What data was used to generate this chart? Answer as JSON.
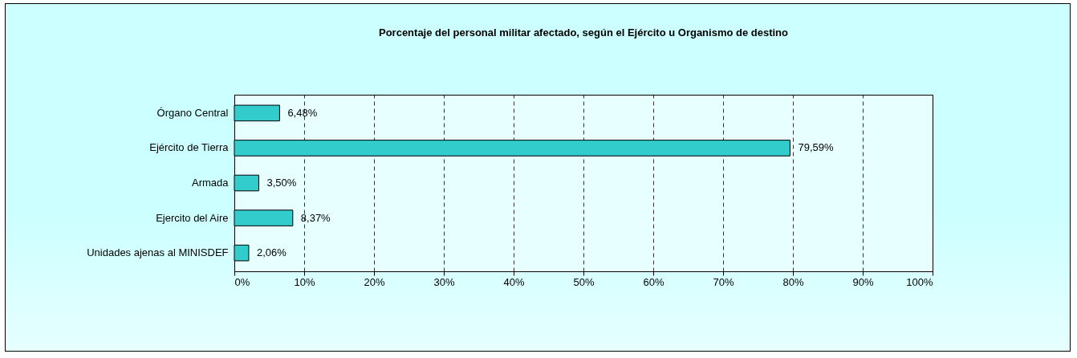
{
  "chart_data": {
    "type": "bar",
    "orientation": "horizontal",
    "title": "Porcentaje del personal militar afectado, según el Ejército u Organismo de destino",
    "categories": [
      "Órgano Central",
      "Ejército de Tierra",
      "Armada",
      "Ejercito del Aire",
      "Unidades ajenas al MINISDEF"
    ],
    "values": [
      6.48,
      79.59,
      3.5,
      8.37,
      2.06
    ],
    "value_labels": [
      "6,48%",
      "79,59%",
      "3,50%",
      "8,37%",
      "2,06%"
    ],
    "color": "#33cccc",
    "xlim": [
      0,
      100
    ],
    "xticks": [
      {
        "value": 0,
        "label": "0%"
      },
      {
        "value": 10,
        "label": "10%"
      },
      {
        "value": 20,
        "label": "20%"
      },
      {
        "value": 30,
        "label": "30%"
      },
      {
        "value": 40,
        "label": "40%"
      },
      {
        "value": 50,
        "label": "50%"
      },
      {
        "value": 60,
        "label": "60%"
      },
      {
        "value": 70,
        "label": "70%"
      },
      {
        "value": 80,
        "label": "80%"
      },
      {
        "value": 90,
        "label": "90%"
      },
      {
        "value": 100,
        "label": "100%"
      }
    ],
    "grid": "x"
  }
}
